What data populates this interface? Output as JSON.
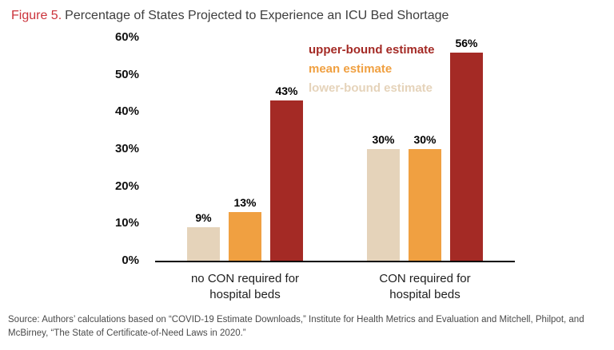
{
  "title": {
    "figure_label": "Figure 5.",
    "text": "Percentage of States Projected to Experience an ICU Bed Shortage"
  },
  "colors": {
    "figure_label_red": "#cb333b",
    "title_gray": "#3d3d3d",
    "axis_black": "#000000",
    "upper_bound": "#a42a25",
    "mean": "#f0a041",
    "lower_bound": "#e5d3ba"
  },
  "legend": [
    {
      "label": "upper-bound estimate",
      "color": "#a42a25"
    },
    {
      "label": "mean estimate",
      "color": "#f0a041"
    },
    {
      "label": "lower-bound estimate",
      "color": "#e5d3ba"
    }
  ],
  "chart_data": {
    "type": "bar",
    "title": "Percentage of States Projected to Experience an ICU Bed Shortage",
    "categories": [
      "no CON required for\nhospital beds",
      "CON required for\nhospital beds"
    ],
    "series": [
      {
        "name": "lower-bound estimate",
        "values": [
          9,
          30
        ],
        "color": "#e5d3ba"
      },
      {
        "name": "mean estimate",
        "values": [
          13,
          30
        ],
        "color": "#f0a041"
      },
      {
        "name": "upper-bound estimate",
        "values": [
          43,
          56
        ],
        "color": "#a42a25"
      }
    ],
    "xlabel": "",
    "ylabel": "",
    "ylim": [
      0,
      60
    ],
    "ytick_step": 10,
    "value_suffix": "%",
    "grid": false,
    "legend_position": "top-center-inside"
  },
  "source": "Source: Authors’ calculations based on “COVID-19 Estimate Downloads,” Institute for Health Metrics and Evaluation and Mitchell, Philpot, and McBirney, “The State of Certificate-of-Need Laws in 2020.”"
}
